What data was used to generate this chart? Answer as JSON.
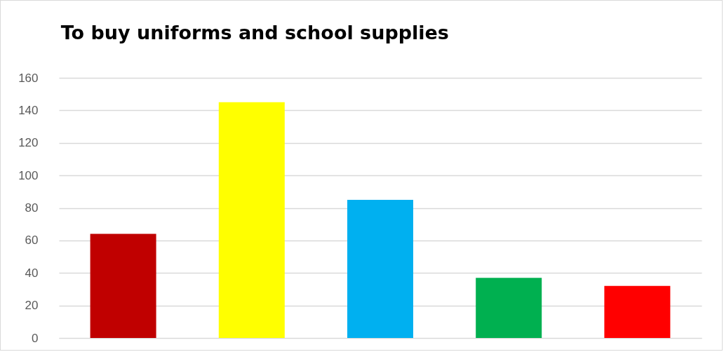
{
  "chart_data": {
    "type": "bar",
    "title": "To buy uniforms and school supplies",
    "categories": [
      null,
      null,
      null,
      null,
      null
    ],
    "values": [
      64,
      145,
      85,
      37,
      32
    ],
    "colors": [
      "#c00000",
      "#ffff00",
      "#00b0f0",
      "#00b050",
      "#ff0000"
    ],
    "ylim": [
      0,
      160
    ],
    "yticks": [
      0,
      20,
      40,
      60,
      80,
      100,
      120,
      140,
      160
    ],
    "grid": "y",
    "legend": false
  }
}
